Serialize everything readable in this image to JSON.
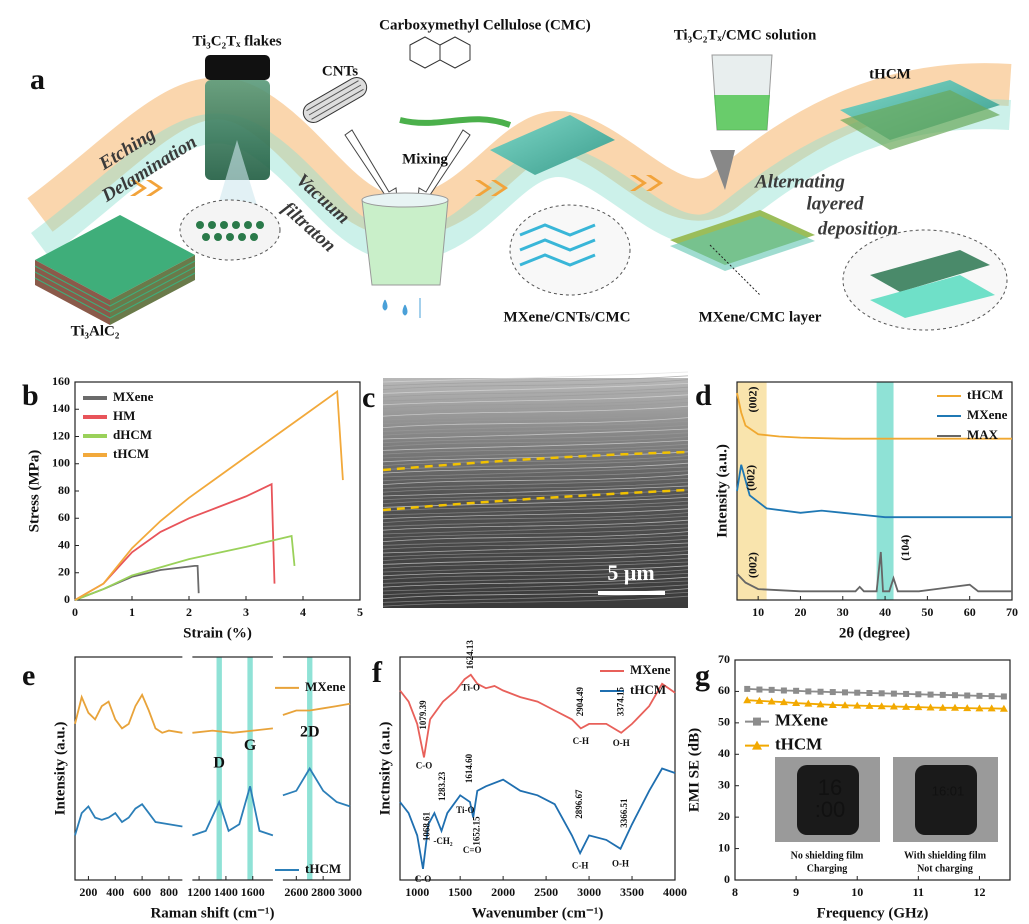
{
  "schematic": {
    "panel": "a",
    "labels": {
      "flakes": "Ti₃C₂Tₓ flakes",
      "cmc": "Carboxymethyl Cellulose (CMC)",
      "cnts": "CNTs",
      "mixing": "Mixing",
      "etching": "Etching",
      "delamination": "Delamination",
      "vacuum": "Vacuum",
      "filtration": "filtraton",
      "max": "Ti₃AlC₂",
      "mcc": "MXene/CNTs/CMC",
      "solution": "Ti₃C₂Tₓ/CMC solution",
      "alternating": "Alternating",
      "layered": "layered",
      "deposition": "deposition",
      "layer": "MXene/CMC layer",
      "thcm": "tHCM"
    }
  },
  "photo": {
    "panel": "c",
    "scale_bar": "5 μm"
  },
  "chart_data": [
    {
      "type": "line",
      "panel": "b",
      "xlabel": "Strain (%)",
      "ylabel": "Stress (MPa)",
      "xlim": [
        0,
        5
      ],
      "ylim": [
        0,
        160
      ],
      "xticks": [
        0,
        1,
        2,
        3,
        4,
        5
      ],
      "yticks": [
        0,
        20,
        40,
        60,
        80,
        100,
        120,
        140,
        160
      ],
      "legend": "top-left",
      "series": [
        {
          "name": "MXene",
          "color": "#6b6b6b",
          "x": [
            0,
            0.5,
            1,
            1.5,
            2.1,
            2.15,
            2.17
          ],
          "values": [
            0,
            8,
            17,
            22,
            25,
            25,
            5
          ]
        },
        {
          "name": "HM",
          "color": "#e8545a",
          "x": [
            0,
            0.5,
            1,
            1.5,
            2,
            2.5,
            3,
            3.45,
            3.5
          ],
          "values": [
            0,
            12,
            35,
            50,
            60,
            68,
            76,
            85,
            12
          ]
        },
        {
          "name": "dHCM",
          "color": "#9ad15a",
          "x": [
            0,
            0.5,
            1,
            2,
            3,
            3.8,
            3.85
          ],
          "values": [
            0,
            8,
            18,
            30,
            39,
            47,
            25
          ]
        },
        {
          "name": "tHCM",
          "color": "#f2a93b",
          "x": [
            0,
            0.5,
            1,
            1.5,
            2,
            2.5,
            3,
            3.5,
            4,
            4.6,
            4.7
          ],
          "values": [
            0,
            12,
            38,
            58,
            75,
            90,
            105,
            120,
            135,
            153,
            88
          ]
        }
      ]
    },
    {
      "type": "line",
      "panel": "d",
      "xlabel": "2θ (degree)",
      "ylabel": "Intensity (a.u.)",
      "xlim": [
        5,
        70
      ],
      "ylim": [
        0,
        100
      ],
      "xticks": [
        10,
        20,
        30,
        40,
        50,
        60,
        70
      ],
      "yticks": [],
      "legend": "top-right",
      "bands": [
        {
          "x": [
            5,
            12
          ],
          "color": "#f7d98a"
        },
        {
          "x": [
            38,
            42
          ],
          "color": "#5fd6c4"
        }
      ],
      "annotations": [
        {
          "text": "(002)",
          "x": 9,
          "y": 92,
          "color": "#b58a2a",
          "rotate": true
        },
        {
          "text": "(002)",
          "x": 8.5,
          "y": 56,
          "color": "#1f78b4",
          "rotate": true
        },
        {
          "text": "(002)",
          "x": 9,
          "y": 16,
          "color": "#777777",
          "rotate": true
        },
        {
          "text": "(104)",
          "x": 45,
          "y": 24,
          "color": "#777777",
          "rotate": true
        }
      ],
      "series": [
        {
          "name": "tHCM",
          "color": "#f0a830",
          "x": [
            5,
            6,
            7,
            10,
            15,
            20,
            30,
            40,
            50,
            60,
            70
          ],
          "values": [
            95,
            86,
            80,
            76,
            75,
            74.5,
            74,
            74,
            74,
            74,
            74
          ]
        },
        {
          "name": "MXene",
          "color": "#1f78b4",
          "x": [
            5,
            6,
            8,
            12,
            20,
            25,
            30,
            35,
            40,
            50,
            60,
            70
          ],
          "values": [
            50,
            62,
            48,
            42,
            40,
            41,
            40,
            39,
            38,
            38,
            38,
            38
          ]
        },
        {
          "name": "MAX",
          "color": "#666666",
          "x": [
            5,
            7,
            10,
            20,
            33,
            34,
            35,
            38,
            39,
            39.5,
            41,
            42,
            43,
            48,
            52,
            56,
            60,
            62,
            70
          ],
          "values": [
            12,
            8,
            5,
            4,
            4,
            6,
            4,
            4,
            22,
            4,
            4,
            10,
            4,
            4,
            5,
            6,
            7,
            4,
            4
          ]
        }
      ]
    },
    {
      "type": "line",
      "panel": "e",
      "xlabel": "Raman shift (cm⁻¹)",
      "ylabel": "Intensity (a.u.)",
      "xsegments": [
        [
          100,
          900
        ],
        [
          1150,
          1750
        ],
        [
          2500,
          3000
        ]
      ],
      "ylim": [
        0,
        100
      ],
      "xticks": [
        200,
        400,
        600,
        800,
        1200,
        1400,
        1600,
        2600,
        2800,
        3000
      ],
      "yticks": [],
      "legend": "beside-lines",
      "bands": [
        {
          "x": [
            1330,
            1370
          ],
          "color": "#5fd6c4"
        },
        {
          "x": [
            1560,
            1600
          ],
          "color": "#5fd6c4"
        },
        {
          "x": [
            2680,
            2720
          ],
          "color": "#5fd6c4"
        }
      ],
      "annotations": [
        {
          "text": "D",
          "x": 1350,
          "y": 52
        },
        {
          "text": "G",
          "x": 1580,
          "y": 60
        },
        {
          "text": "2D",
          "x": 2700,
          "y": 66
        }
      ],
      "series": [
        {
          "name": "MXene",
          "color": "#e8a33a",
          "x": [
            100,
            150,
            200,
            250,
            300,
            350,
            400,
            450,
            500,
            550,
            600,
            650,
            700,
            750,
            800,
            900,
            null,
            1150,
            1300,
            1450,
            1600,
            1750,
            null,
            2500,
            2600,
            2700,
            2800,
            2900,
            3000
          ],
          "values": [
            70,
            82,
            75,
            72,
            78,
            80,
            72,
            68,
            70,
            78,
            83,
            76,
            68,
            66,
            67,
            66,
            null,
            66,
            67,
            66,
            67,
            68,
            null,
            74,
            76,
            76,
            77,
            78,
            79
          ]
        },
        {
          "name": "tHCM",
          "color": "#2c7fb8",
          "x": [
            100,
            150,
            200,
            250,
            300,
            350,
            400,
            450,
            500,
            550,
            600,
            650,
            700,
            800,
            900,
            null,
            1150,
            1250,
            1350,
            1420,
            1500,
            1580,
            1650,
            1750,
            null,
            2500,
            2600,
            2700,
            2800,
            2900,
            3000
          ],
          "values": [
            20,
            30,
            33,
            28,
            27,
            28,
            30,
            26,
            28,
            32,
            34,
            30,
            26,
            25,
            24,
            null,
            20,
            22,
            35,
            22,
            25,
            42,
            22,
            20,
            null,
            38,
            40,
            50,
            40,
            35,
            33
          ]
        }
      ]
    },
    {
      "type": "line",
      "panel": "f",
      "xlabel": "Wavenumber (cm⁻¹)",
      "ylabel": "Inctnsity (a.u.)",
      "xlim": [
        800,
        4000
      ],
      "ylim": [
        0,
        100
      ],
      "xticks": [
        1000,
        1500,
        2000,
        2500,
        3000,
        3500,
        4000
      ],
      "yticks": [],
      "legend": "top-right",
      "annotations": [
        {
          "text": "1079.39",
          "x": 1079,
          "y": 74,
          "color": "#333333",
          "rotate": true
        },
        {
          "text": "C-O",
          "x": 1079,
          "y": 51,
          "color": "#e8605a"
        },
        {
          "text": "1624.13",
          "x": 1624,
          "y": 101,
          "color": "#333333",
          "rotate": true
        },
        {
          "text": "Ti-O",
          "x": 1624,
          "y": 86,
          "color": "#e8605a"
        },
        {
          "text": "2904.49",
          "x": 2904,
          "y": 80,
          "color": "#333333",
          "rotate": true
        },
        {
          "text": "C-H",
          "x": 2904,
          "y": 62,
          "color": "#e8605a"
        },
        {
          "text": "3374.15",
          "x": 3374,
          "y": 80,
          "color": "#333333",
          "rotate": true
        },
        {
          "text": "O-H",
          "x": 3374,
          "y": 61,
          "color": "#e8605a"
        },
        {
          "text": "1068.61",
          "x": 1120,
          "y": 24,
          "color": "#333333",
          "rotate": true
        },
        {
          "text": "C-O",
          "x": 1068,
          "y": 0,
          "color": "#1f6fb0"
        },
        {
          "text": "1283.23",
          "x": 1300,
          "y": 42,
          "color": "#333333",
          "rotate": true
        },
        {
          "text": "-CH₂",
          "x": 1300,
          "y": 17,
          "color": "#1f6fb0"
        },
        {
          "text": "1614.60",
          "x": 1614,
          "y": 50,
          "color": "#333333",
          "rotate": true
        },
        {
          "text": "Ti-O",
          "x": 1560,
          "y": 31,
          "color": "#1f6fb0"
        },
        {
          "text": "1652.15",
          "x": 1700,
          "y": 22,
          "color": "#333333",
          "rotate": true
        },
        {
          "text": "C=O",
          "x": 1640,
          "y": 13,
          "color": "#1f6fb0"
        },
        {
          "text": "2896.67",
          "x": 2896,
          "y": 34,
          "color": "#333333",
          "rotate": true
        },
        {
          "text": "C-H",
          "x": 2896,
          "y": 6,
          "color": "#1f6fb0"
        },
        {
          "text": "3366.51",
          "x": 3420,
          "y": 30,
          "color": "#333333",
          "rotate": true
        },
        {
          "text": "O-H",
          "x": 3366,
          "y": 7,
          "color": "#1f6fb0"
        }
      ],
      "series": [
        {
          "name": "MXene",
          "color": "#e8605a",
          "x": [
            800,
            900,
            1000,
            1079,
            1150,
            1300,
            1450,
            1550,
            1624,
            1700,
            1800,
            1900,
            2000,
            2200,
            2400,
            2600,
            2800,
            2904,
            3000,
            3200,
            3374,
            3500,
            3700,
            3850,
            4000
          ],
          "values": [
            85,
            80,
            70,
            55,
            72,
            80,
            85,
            90,
            92,
            88,
            86,
            87,
            85,
            82,
            80,
            76,
            72,
            68,
            70,
            70,
            66,
            70,
            78,
            88,
            84
          ]
        },
        {
          "name": "tHCM",
          "color": "#1f6fb0",
          "x": [
            800,
            900,
            1000,
            1068,
            1130,
            1200,
            1283,
            1350,
            1500,
            1614,
            1652,
            1700,
            1800,
            2000,
            2200,
            2400,
            2600,
            2800,
            2896,
            3000,
            3200,
            3366,
            3500,
            3700,
            3850,
            4000
          ],
          "values": [
            35,
            30,
            20,
            5,
            25,
            30,
            22,
            30,
            38,
            35,
            28,
            40,
            42,
            45,
            40,
            38,
            34,
            20,
            12,
            20,
            18,
            14,
            25,
            40,
            50,
            48
          ]
        }
      ]
    },
    {
      "type": "line",
      "panel": "g",
      "xlabel": "Frequency (GHz)",
      "ylabel": "EMI SE (dB)",
      "xlim": [
        8,
        12.5
      ],
      "ylim": [
        0,
        70
      ],
      "xticks": [
        8,
        9,
        10,
        11,
        12
      ],
      "yticks": [
        0,
        10,
        20,
        30,
        40,
        50,
        60,
        70
      ],
      "legend": "center-left",
      "insets": [
        {
          "screen": [
            "16",
            ":00"
          ],
          "caption": [
            "No shielding film",
            "Charging"
          ]
        },
        {
          "screen": [
            "16:01"
          ],
          "caption": [
            "With shielding film",
            "Not charging"
          ]
        }
      ],
      "series": [
        {
          "name": "MXene",
          "color": "#8c8c8c",
          "marker": "square",
          "x": [
            8.2,
            8.4,
            8.6,
            8.8,
            9.0,
            9.2,
            9.4,
            9.6,
            9.8,
            10.0,
            10.2,
            10.4,
            10.6,
            10.8,
            11.0,
            11.2,
            11.4,
            11.6,
            11.8,
            12.0,
            12.2,
            12.4
          ],
          "values": [
            60.8,
            60.6,
            60.5,
            60.3,
            60.2,
            60.0,
            59.9,
            59.8,
            59.7,
            59.6,
            59.5,
            59.4,
            59.3,
            59.2,
            59.1,
            59.0,
            58.9,
            58.8,
            58.7,
            58.6,
            58.5,
            58.4
          ]
        },
        {
          "name": "tHCM",
          "color": "#f2a900",
          "marker": "triangle",
          "x": [
            8.2,
            8.4,
            8.6,
            8.8,
            9.0,
            9.2,
            9.4,
            9.6,
            9.8,
            10.0,
            10.2,
            10.4,
            10.6,
            10.8,
            11.0,
            11.2,
            11.4,
            11.6,
            11.8,
            12.0,
            12.2,
            12.4
          ],
          "values": [
            57.2,
            57.0,
            56.8,
            56.6,
            56.3,
            56.1,
            55.9,
            55.7,
            55.6,
            55.5,
            55.4,
            55.3,
            55.2,
            55.1,
            55.0,
            54.9,
            54.8,
            54.8,
            54.7,
            54.6,
            54.6,
            54.5
          ]
        }
      ]
    }
  ]
}
